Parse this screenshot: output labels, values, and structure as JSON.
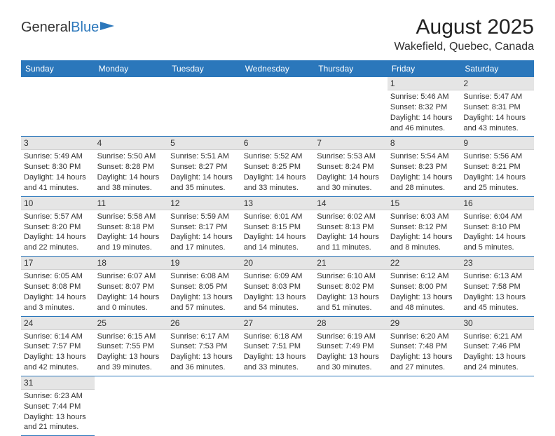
{
  "logo": {
    "text1": "General",
    "text2": "Blue"
  },
  "title": "August 2025",
  "location": "Wakefield, Quebec, Canada",
  "colors": {
    "accent": "#2b77bb",
    "header_bg": "#2b77bb",
    "daynum_bg": "#e5e5e5"
  },
  "daysOfWeek": [
    "Sunday",
    "Monday",
    "Tuesday",
    "Wednesday",
    "Thursday",
    "Friday",
    "Saturday"
  ],
  "weeks": [
    [
      null,
      null,
      null,
      null,
      null,
      {
        "n": "1",
        "sunrise": "5:46 AM",
        "sunset": "8:32 PM",
        "dh": "14",
        "dm": "46"
      },
      {
        "n": "2",
        "sunrise": "5:47 AM",
        "sunset": "8:31 PM",
        "dh": "14",
        "dm": "43"
      }
    ],
    [
      {
        "n": "3",
        "sunrise": "5:49 AM",
        "sunset": "8:30 PM",
        "dh": "14",
        "dm": "41"
      },
      {
        "n": "4",
        "sunrise": "5:50 AM",
        "sunset": "8:28 PM",
        "dh": "14",
        "dm": "38"
      },
      {
        "n": "5",
        "sunrise": "5:51 AM",
        "sunset": "8:27 PM",
        "dh": "14",
        "dm": "35"
      },
      {
        "n": "6",
        "sunrise": "5:52 AM",
        "sunset": "8:25 PM",
        "dh": "14",
        "dm": "33"
      },
      {
        "n": "7",
        "sunrise": "5:53 AM",
        "sunset": "8:24 PM",
        "dh": "14",
        "dm": "30"
      },
      {
        "n": "8",
        "sunrise": "5:54 AM",
        "sunset": "8:23 PM",
        "dh": "14",
        "dm": "28"
      },
      {
        "n": "9",
        "sunrise": "5:56 AM",
        "sunset": "8:21 PM",
        "dh": "14",
        "dm": "25"
      }
    ],
    [
      {
        "n": "10",
        "sunrise": "5:57 AM",
        "sunset": "8:20 PM",
        "dh": "14",
        "dm": "22"
      },
      {
        "n": "11",
        "sunrise": "5:58 AM",
        "sunset": "8:18 PM",
        "dh": "14",
        "dm": "19"
      },
      {
        "n": "12",
        "sunrise": "5:59 AM",
        "sunset": "8:17 PM",
        "dh": "14",
        "dm": "17"
      },
      {
        "n": "13",
        "sunrise": "6:01 AM",
        "sunset": "8:15 PM",
        "dh": "14",
        "dm": "14"
      },
      {
        "n": "14",
        "sunrise": "6:02 AM",
        "sunset": "8:13 PM",
        "dh": "14",
        "dm": "11"
      },
      {
        "n": "15",
        "sunrise": "6:03 AM",
        "sunset": "8:12 PM",
        "dh": "14",
        "dm": "8"
      },
      {
        "n": "16",
        "sunrise": "6:04 AM",
        "sunset": "8:10 PM",
        "dh": "14",
        "dm": "5"
      }
    ],
    [
      {
        "n": "17",
        "sunrise": "6:05 AM",
        "sunset": "8:08 PM",
        "dh": "14",
        "dm": "3"
      },
      {
        "n": "18",
        "sunrise": "6:07 AM",
        "sunset": "8:07 PM",
        "dh": "14",
        "dm": "0"
      },
      {
        "n": "19",
        "sunrise": "6:08 AM",
        "sunset": "8:05 PM",
        "dh": "13",
        "dm": "57"
      },
      {
        "n": "20",
        "sunrise": "6:09 AM",
        "sunset": "8:03 PM",
        "dh": "13",
        "dm": "54"
      },
      {
        "n": "21",
        "sunrise": "6:10 AM",
        "sunset": "8:02 PM",
        "dh": "13",
        "dm": "51"
      },
      {
        "n": "22",
        "sunrise": "6:12 AM",
        "sunset": "8:00 PM",
        "dh": "13",
        "dm": "48"
      },
      {
        "n": "23",
        "sunrise": "6:13 AM",
        "sunset": "7:58 PM",
        "dh": "13",
        "dm": "45"
      }
    ],
    [
      {
        "n": "24",
        "sunrise": "6:14 AM",
        "sunset": "7:57 PM",
        "dh": "13",
        "dm": "42"
      },
      {
        "n": "25",
        "sunrise": "6:15 AM",
        "sunset": "7:55 PM",
        "dh": "13",
        "dm": "39"
      },
      {
        "n": "26",
        "sunrise": "6:17 AM",
        "sunset": "7:53 PM",
        "dh": "13",
        "dm": "36"
      },
      {
        "n": "27",
        "sunrise": "6:18 AM",
        "sunset": "7:51 PM",
        "dh": "13",
        "dm": "33"
      },
      {
        "n": "28",
        "sunrise": "6:19 AM",
        "sunset": "7:49 PM",
        "dh": "13",
        "dm": "30"
      },
      {
        "n": "29",
        "sunrise": "6:20 AM",
        "sunset": "7:48 PM",
        "dh": "13",
        "dm": "27"
      },
      {
        "n": "30",
        "sunrise": "6:21 AM",
        "sunset": "7:46 PM",
        "dh": "13",
        "dm": "24"
      }
    ],
    [
      {
        "n": "31",
        "sunrise": "6:23 AM",
        "sunset": "7:44 PM",
        "dh": "13",
        "dm": "21"
      },
      null,
      null,
      null,
      null,
      null,
      null
    ]
  ],
  "labels": {
    "sunrise": "Sunrise: ",
    "sunset": "Sunset: ",
    "daylightA": "Daylight: ",
    "daylightB": " hours and ",
    "daylightC": " minutes."
  }
}
